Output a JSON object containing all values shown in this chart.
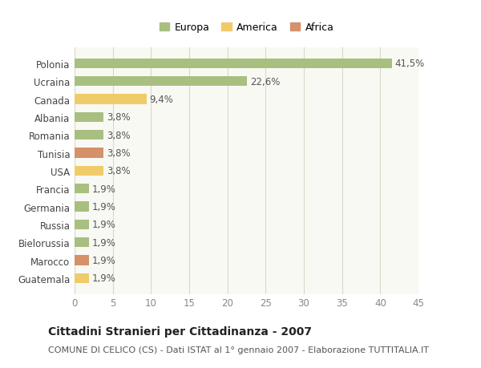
{
  "title": "Cittadini Stranieri per Cittadinanza - 2007",
  "subtitle": "COMUNE DI CELICO (CS) - Dati ISTAT al 1° gennaio 2007 - Elaborazione TUTTITALIA.IT",
  "categories": [
    "Guatemala",
    "Marocco",
    "Bielorussia",
    "Russia",
    "Germania",
    "Francia",
    "USA",
    "Tunisia",
    "Romania",
    "Albania",
    "Canada",
    "Ucraina",
    "Polonia"
  ],
  "values": [
    1.9,
    1.9,
    1.9,
    1.9,
    1.9,
    1.9,
    3.8,
    3.8,
    3.8,
    3.8,
    9.4,
    22.6,
    41.5
  ],
  "labels": [
    "1,9%",
    "1,9%",
    "1,9%",
    "1,9%",
    "1,9%",
    "1,9%",
    "3,8%",
    "3,8%",
    "3,8%",
    "3,8%",
    "9,4%",
    "22,6%",
    "41,5%"
  ],
  "colors": [
    "#f0cb6a",
    "#d4916a",
    "#a8bf80",
    "#a8bf80",
    "#a8bf80",
    "#a8bf80",
    "#f0cb6a",
    "#d4916a",
    "#a8bf80",
    "#a8bf80",
    "#f0cb6a",
    "#a8bf80",
    "#a8bf80"
  ],
  "legend": [
    {
      "label": "Europa",
      "color": "#a8bf80"
    },
    {
      "label": "America",
      "color": "#f0cb6a"
    },
    {
      "label": "Africa",
      "color": "#d4916a"
    }
  ],
  "xlim": [
    0,
    45
  ],
  "xticks": [
    0,
    5,
    10,
    15,
    20,
    25,
    30,
    35,
    40,
    45
  ],
  "background_color": "#ffffff",
  "plot_bg_color": "#f9f9f4",
  "grid_color": "#d8d8c8",
  "title_fontsize": 10,
  "subtitle_fontsize": 8,
  "tick_fontsize": 8.5,
  "label_fontsize": 8.5,
  "bar_height": 0.55
}
